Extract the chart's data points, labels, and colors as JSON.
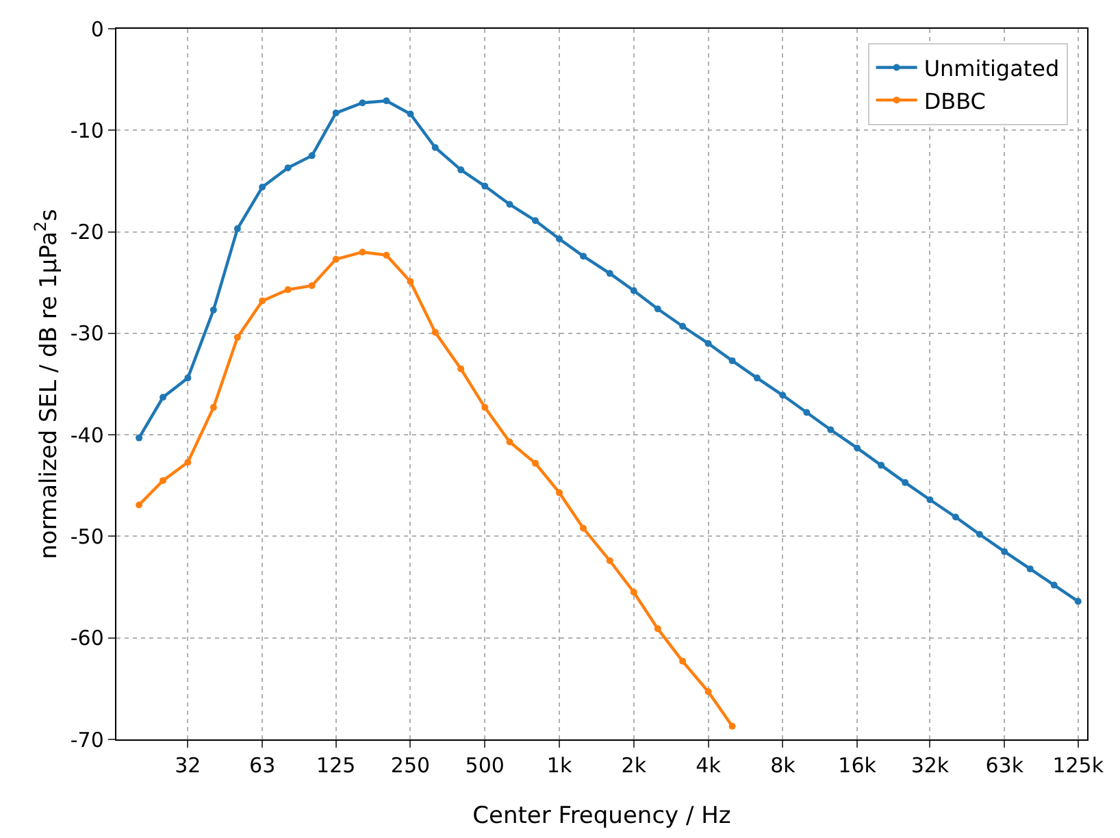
{
  "chart_data": {
    "type": "line",
    "xlabel": "Center Frequency / Hz",
    "ylabel": "normalized SEL / dB re 1µPa$^{2}$s",
    "x": [
      20,
      25,
      31.5,
      40,
      50,
      63,
      80,
      100,
      125,
      160,
      200,
      250,
      315,
      400,
      500,
      630,
      800,
      1000,
      1250,
      1600,
      2000,
      2500,
      3150,
      4000,
      5000,
      6300,
      8000,
      10000,
      12500,
      16000,
      20000,
      25000,
      31500,
      40000,
      50000,
      63000,
      80000,
      100000,
      125000
    ],
    "series": [
      {
        "name": "Unmitigated",
        "color": "#1f77b4",
        "values": [
          -40.3,
          -36.3,
          -34.4,
          -27.7,
          -19.7,
          -15.6,
          -13.7,
          -12.5,
          -8.3,
          -7.3,
          -7.1,
          -8.4,
          -11.7,
          -13.9,
          -15.5,
          -17.3,
          -18.9,
          -20.7,
          -22.4,
          -24.1,
          -25.8,
          -27.6,
          -29.3,
          -31.0,
          -32.7,
          -34.4,
          -36.1,
          -37.8,
          -39.5,
          -41.3,
          -43.0,
          -44.7,
          -46.4,
          -48.1,
          -49.8,
          -51.5,
          -53.2,
          -54.8,
          -56.4
        ]
      },
      {
        "name": "DBBC",
        "color": "#ff7f0e",
        "values": [
          -46.9,
          -44.5,
          -42.7,
          -37.3,
          -30.4,
          -26.8,
          -25.7,
          -25.3,
          -22.7,
          -22.0,
          -22.3,
          -24.9,
          -29.9,
          -33.5,
          -37.3,
          -40.7,
          -42.8,
          -45.7,
          -49.2,
          -52.4,
          -55.5,
          -59.1,
          -62.3,
          -65.3,
          -68.7,
          null,
          null,
          null,
          null,
          null,
          null,
          null,
          null,
          null,
          null,
          null,
          null,
          null,
          null
        ]
      }
    ],
    "log": "x",
    "xlim": [
      16.2,
      136000
    ],
    "xticks": [
      {
        "value": 31.5,
        "label": "32"
      },
      63,
      125,
      250,
      500,
      {
        "value": 1000,
        "label": "1k"
      },
      {
        "value": 2000,
        "label": "2k"
      },
      {
        "value": 4000,
        "label": "4k"
      },
      {
        "value": 8000,
        "label": "8k"
      },
      {
        "value": 16000,
        "label": "16k"
      },
      {
        "value": 31500,
        "label": "32k"
      },
      {
        "value": 63000,
        "label": "63k"
      },
      {
        "value": 125000,
        "label": "125k"
      }
    ],
    "ylim": [
      -70,
      0
    ],
    "yticks": [
      -70,
      -60,
      -50,
      -40,
      -30,
      -20,
      -10,
      0
    ],
    "grid": true,
    "legend": "top right",
    "marker": "circle",
    "line_style": "solid"
  }
}
